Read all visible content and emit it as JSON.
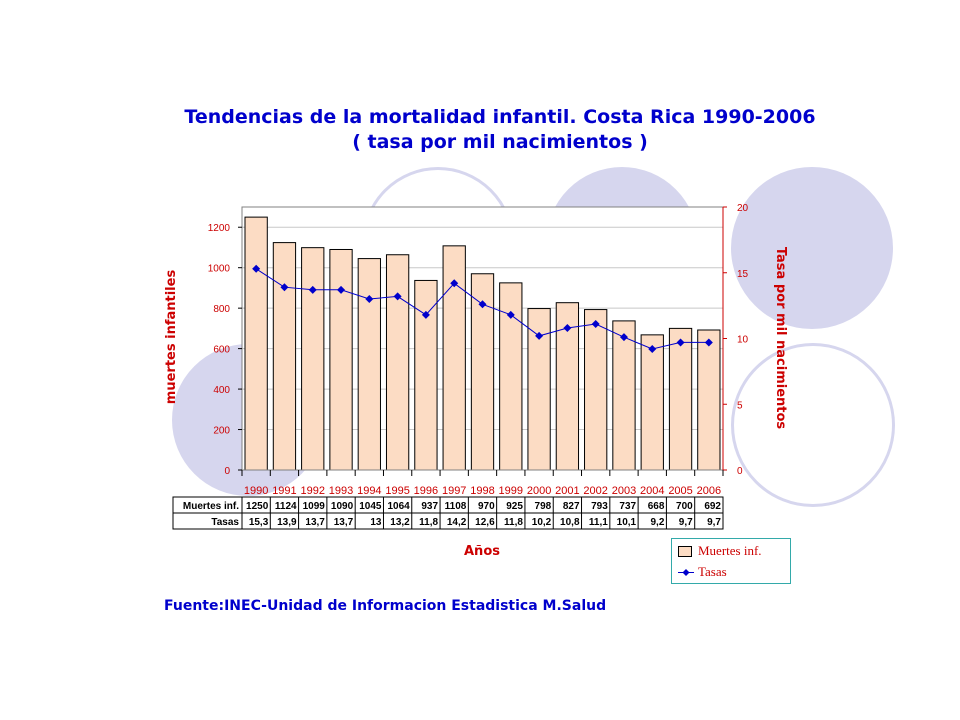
{
  "chart_data": {
    "type": "bar",
    "title": "Tendencias de la mortalidad infantil. Costa Rica 1990-2006",
    "subtitle": "( tasa por mil nacimientos )",
    "xlabel": "Años",
    "ylabel": "muertes infantiles",
    "y2label": "Tasa por mil nacimientos",
    "categories": [
      "1990",
      "1991",
      "1992",
      "1993",
      "1994",
      "1995",
      "1996",
      "1997",
      "1998",
      "1999",
      "2000",
      "2001",
      "2002",
      "2003",
      "2004",
      "2005",
      "2006"
    ],
    "series": [
      {
        "name": "Muertes inf.",
        "type": "bar",
        "axis": "left",
        "values": [
          1250,
          1124,
          1099,
          1090,
          1045,
          1064,
          937,
          1108,
          970,
          925,
          798,
          827,
          793,
          737,
          668,
          700,
          692
        ],
        "table_labels": [
          "1250",
          "1124",
          "1099",
          "1090",
          "1045",
          "1064",
          "937",
          "1108",
          "970",
          "925",
          "798",
          "827",
          "793",
          "737",
          "668",
          "700",
          "692"
        ]
      },
      {
        "name": "Tasas",
        "type": "line",
        "axis": "right",
        "values": [
          15.3,
          13.9,
          13.7,
          13.7,
          13,
          13.2,
          11.8,
          14.2,
          12.6,
          11.8,
          10.2,
          10.8,
          11.1,
          10.1,
          9.2,
          9.7,
          9.7
        ],
        "table_labels": [
          "15,3",
          "13,9",
          "13,7",
          "13,7",
          "13",
          "13,2",
          "11,8",
          "14,2",
          "12,6",
          "11,8",
          "10,2",
          "10,8",
          "11,1",
          "10,1",
          "9,2",
          "9,7",
          "9,7"
        ]
      }
    ],
    "ylim": [
      0,
      1300
    ],
    "y2lim": [
      0,
      20
    ],
    "yticks": [
      "0",
      "200",
      "400",
      "600",
      "800",
      "1000",
      "1200"
    ],
    "y2ticks": [
      "0",
      "5",
      "10",
      "15",
      "20"
    ],
    "grid": true,
    "legend_position": "bottom-right",
    "data_table": true
  },
  "source": "Fuente:INEC-Unidad de Informacion Estadistica M.Salud",
  "colors": {
    "title": "#0000cc",
    "axis_label": "#cc0000",
    "bar_fill": "#fcdcc4",
    "bar_stroke": "#000000",
    "line": "#0000cc",
    "tick_text": "#cc0000",
    "background_circles": "#d6d6ee",
    "legend_border": "#33aaaa"
  }
}
